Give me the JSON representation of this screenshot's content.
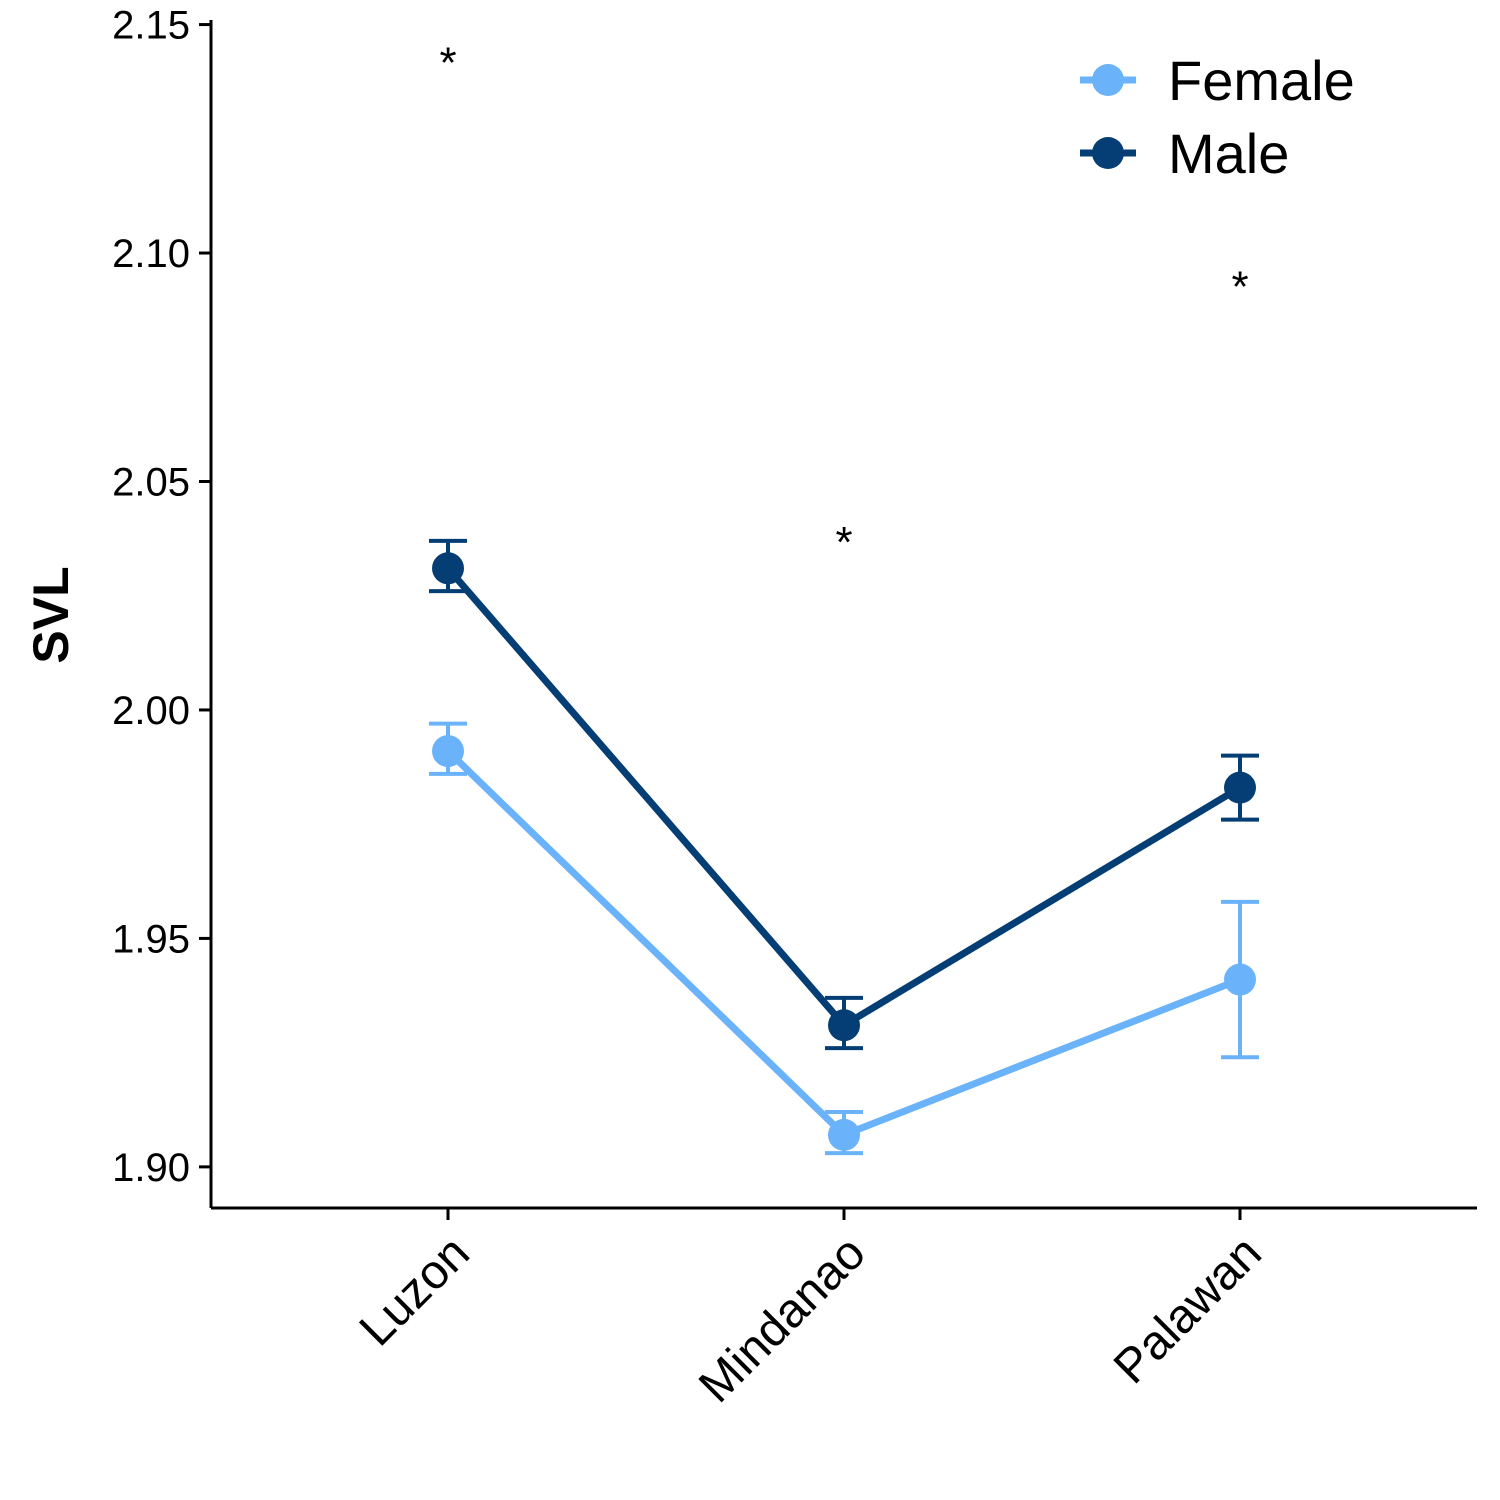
{
  "chart_data": {
    "type": "line",
    "title": "",
    "xlabel": "",
    "ylabel": "SVL",
    "categories": [
      "Luzon",
      "Mindanao",
      "Palawan"
    ],
    "ylim": [
      1.891,
      2.151
    ],
    "yticks": [
      1.9,
      1.95,
      2.0,
      2.05,
      2.1,
      2.15
    ],
    "ytick_labels": [
      "1.90",
      "1.95",
      "2.00",
      "2.05",
      "2.10",
      "2.15"
    ],
    "grid": false,
    "legend_position": "top-right",
    "series": [
      {
        "name": "Female",
        "color": "#6AB2FA",
        "values": [
          1.991,
          1.907,
          1.941
        ],
        "error_low": [
          1.986,
          1.903,
          1.924
        ],
        "error_high": [
          1.997,
          1.912,
          1.958
        ]
      },
      {
        "name": "Male",
        "color": "#053E74",
        "values": [
          2.031,
          1.931,
          1.983
        ],
        "error_low": [
          2.026,
          1.926,
          1.976
        ],
        "error_high": [
          2.037,
          1.937,
          1.99
        ]
      }
    ],
    "annotations": [
      {
        "category": "Luzon",
        "text": "*",
        "y": 2.145
      },
      {
        "category": "Mindanao",
        "text": "*",
        "y": 2.04
      },
      {
        "category": "Palawan",
        "text": "*",
        "y": 2.096
      }
    ]
  }
}
